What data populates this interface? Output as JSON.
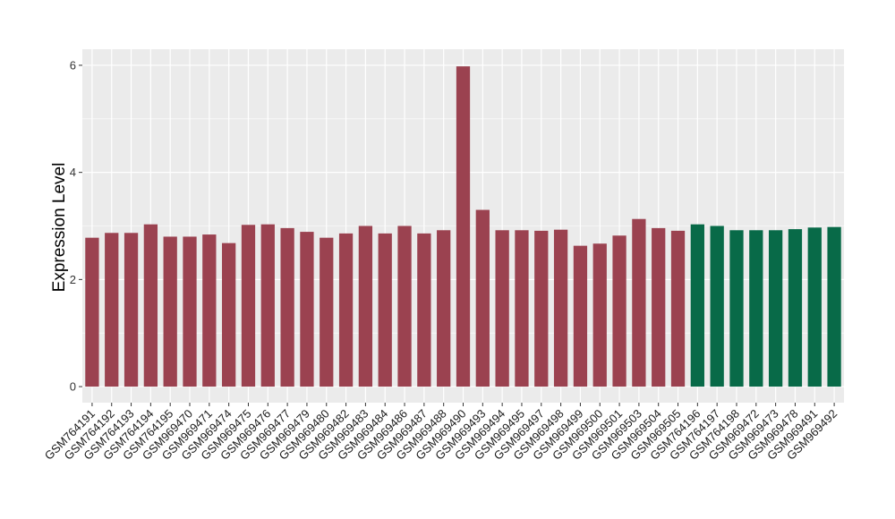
{
  "chart_data": {
    "type": "bar",
    "ylabel": "Expression Level",
    "xlabel": "",
    "ylim": [
      -0.3,
      6.3
    ],
    "yticks": [
      0,
      2,
      4,
      6
    ],
    "grid": true,
    "colors": {
      "group_a": "#9b4250",
      "group_b": "#086a48",
      "panel": "#ebebeb",
      "grid": "#ffffff"
    },
    "categories": [
      "GSM764191",
      "GSM764192",
      "GSM764193",
      "GSM764194",
      "GSM764195",
      "GSM969470",
      "GSM969471",
      "GSM969474",
      "GSM969475",
      "GSM969476",
      "GSM969477",
      "GSM969479",
      "GSM969480",
      "GSM969482",
      "GSM969483",
      "GSM969484",
      "GSM969486",
      "GSM969487",
      "GSM969488",
      "GSM969490",
      "GSM969493",
      "GSM969494",
      "GSM969495",
      "GSM969497",
      "GSM969498",
      "GSM969499",
      "GSM969500",
      "GSM969501",
      "GSM969503",
      "GSM969504",
      "GSM969505",
      "GSM764196",
      "GSM764197",
      "GSM764198",
      "GSM969472",
      "GSM969473",
      "GSM969478",
      "GSM969491",
      "GSM969492"
    ],
    "values": [
      2.78,
      2.87,
      2.87,
      3.03,
      2.8,
      2.8,
      2.84,
      2.68,
      3.02,
      3.03,
      2.96,
      2.89,
      2.78,
      2.86,
      3.0,
      2.86,
      3.0,
      2.86,
      2.92,
      5.98,
      3.3,
      2.92,
      2.92,
      2.91,
      2.93,
      2.63,
      2.67,
      2.82,
      3.13,
      2.96,
      2.91,
      3.03,
      3.0,
      2.92,
      2.92,
      2.92,
      2.94,
      2.97,
      2.98
    ],
    "groups": [
      "a",
      "a",
      "a",
      "a",
      "a",
      "a",
      "a",
      "a",
      "a",
      "a",
      "a",
      "a",
      "a",
      "a",
      "a",
      "a",
      "a",
      "a",
      "a",
      "a",
      "a",
      "a",
      "a",
      "a",
      "a",
      "a",
      "a",
      "a",
      "a",
      "a",
      "a",
      "b",
      "b",
      "b",
      "b",
      "b",
      "b",
      "b",
      "b"
    ]
  }
}
